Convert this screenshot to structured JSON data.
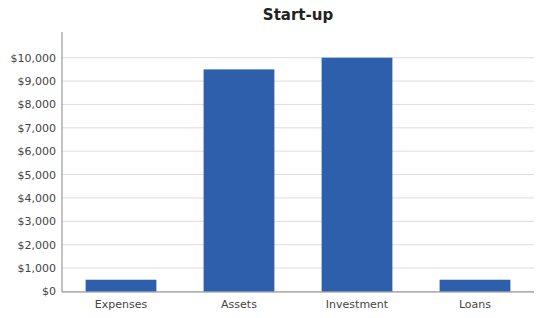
{
  "chart_data": {
    "type": "bar",
    "title": "Start-up",
    "categories": [
      "Expenses",
      "Assets",
      "Investment",
      "Loans"
    ],
    "values": [
      500,
      9500,
      10000,
      500
    ],
    "color": "#2E5FAC",
    "ylim": [
      -25,
      11100
    ],
    "yticks": [
      {
        "value": 0,
        "label": "$0"
      },
      {
        "value": 1000,
        "label": "$1,000"
      },
      {
        "value": 2000,
        "label": "$2,000"
      },
      {
        "value": 3000,
        "label": "$3,000"
      },
      {
        "value": 4000,
        "label": "$4,000"
      },
      {
        "value": 5000,
        "label": "$5,000"
      },
      {
        "value": 6000,
        "label": "$6,000"
      },
      {
        "value": 7000,
        "label": "$7,000"
      },
      {
        "value": 8000,
        "label": "$8,000"
      },
      {
        "value": 9000,
        "label": "$9,000"
      },
      {
        "value": 10000,
        "label": "$10,000"
      }
    ],
    "grid": true
  }
}
